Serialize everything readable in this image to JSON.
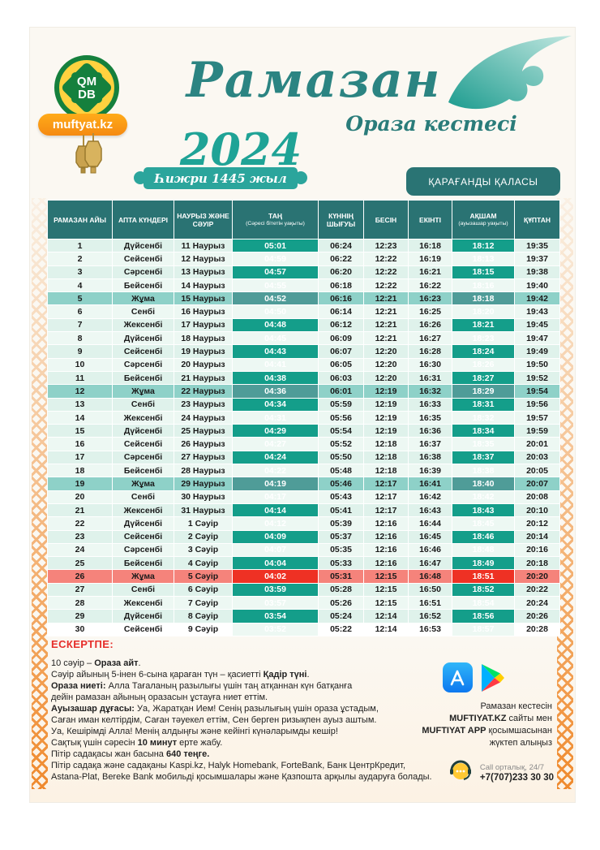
{
  "header": {
    "title": "Рамазан",
    "subtitle": "Ораза кестесі",
    "year": "2024",
    "hijri_badge": "Һижри 1445 жыл",
    "city_button": "ҚАРАҒАНДЫ ҚАЛАСЫ",
    "logo": {
      "line1": "QM",
      "line2": "DB",
      "badge": "muftyat.kz"
    }
  },
  "colors": {
    "header_teal": "#2a7373",
    "accent_teal": "#149e8a",
    "friday_light": "#8ed1c8",
    "friday_dark": "#4f9c98",
    "red": "#ee3124",
    "red_light": "#f5837b",
    "row_odd": "#dff2eb",
    "row_even": "#edf8f3",
    "orange_brand": "#f58a12"
  },
  "table": {
    "headers": [
      {
        "key": "ramadan-day",
        "main": "РАМАЗАН АЙЫ",
        "sub": ""
      },
      {
        "key": "weekday",
        "main": "АПТА КҮНДЕРІ",
        "sub": ""
      },
      {
        "key": "date",
        "main": "НАУРЫЗ ЖӘНЕ СӘУІР",
        "sub": ""
      },
      {
        "key": "tan",
        "main": "ТАҢ",
        "sub": "(Сәресі бітетін уақыты)"
      },
      {
        "key": "sunrise",
        "main": "КҮННІҢ ШЫҒУЫ",
        "sub": ""
      },
      {
        "key": "besin",
        "main": "БЕСІН",
        "sub": ""
      },
      {
        "key": "ekinti",
        "main": "ЕКІНТІ",
        "sub": ""
      },
      {
        "key": "aqsham",
        "main": "АҚШАМ",
        "sub": "(ауызашар уақыты)"
      },
      {
        "key": "quptan",
        "main": "ҚҰПТАН",
        "sub": ""
      }
    ],
    "rows": [
      {
        "type": "normal",
        "cells": [
          "1",
          "Дүйсенбі",
          "11 Наурыз",
          "05:01",
          "06:24",
          "12:23",
          "16:18",
          "18:12",
          "19:35"
        ]
      },
      {
        "type": "normal",
        "cells": [
          "2",
          "Сейсенбі",
          "12 Наурыз",
          "04:59",
          "06:22",
          "12:22",
          "16:19",
          "18:13",
          "19:37"
        ]
      },
      {
        "type": "normal",
        "cells": [
          "3",
          "Сәрсенбі",
          "13 Наурыз",
          "04:57",
          "06:20",
          "12:22",
          "16:21",
          "18:15",
          "19:38"
        ]
      },
      {
        "type": "normal",
        "cells": [
          "4",
          "Бейсенбі",
          "14 Наурыз",
          "04:55",
          "06:18",
          "12:22",
          "16:22",
          "18:16",
          "19:40"
        ]
      },
      {
        "type": "friday",
        "cells": [
          "5",
          "Жұма",
          "15 Наурыз",
          "04:52",
          "06:16",
          "12:21",
          "16:23",
          "18:18",
          "19:42"
        ]
      },
      {
        "type": "normal",
        "cells": [
          "6",
          "Сенбі",
          "16 Наурыз",
          "04:50",
          "06:14",
          "12:21",
          "16:25",
          "18:20",
          "19:43"
        ]
      },
      {
        "type": "normal",
        "cells": [
          "7",
          "Жексенбі",
          "17 Наурыз",
          "04:48",
          "06:12",
          "12:21",
          "16:26",
          "18:21",
          "19:45"
        ]
      },
      {
        "type": "normal",
        "cells": [
          "8",
          "Дүйсенбі",
          "18 Наурыз",
          "04:45",
          "06:09",
          "12:21",
          "16:27",
          "18:23",
          "19:47"
        ]
      },
      {
        "type": "normal",
        "cells": [
          "9",
          "Сейсенбі",
          "19 Наурыз",
          "04:43",
          "06:07",
          "12:20",
          "16:28",
          "18:24",
          "19:49"
        ]
      },
      {
        "type": "normal",
        "cells": [
          "10",
          "Сәрсенбі",
          "20 Наурыз",
          "04:41",
          "06:05",
          "12:20",
          "16:30",
          "18:26",
          "19:50"
        ]
      },
      {
        "type": "normal",
        "cells": [
          "11",
          "Бейсенбі",
          "21 Наурыз",
          "04:38",
          "06:03",
          "12:20",
          "16:31",
          "18:27",
          "19:52"
        ]
      },
      {
        "type": "friday",
        "cells": [
          "12",
          "Жұма",
          "22 Наурыз",
          "04:36",
          "06:01",
          "12:19",
          "16:32",
          "18:29",
          "19:54"
        ]
      },
      {
        "type": "normal",
        "cells": [
          "13",
          "Сенбі",
          "23 Наурыз",
          "04:34",
          "05:59",
          "12:19",
          "16:33",
          "18:31",
          "19:56"
        ]
      },
      {
        "type": "normal",
        "cells": [
          "14",
          "Жексенбі",
          "24 Наурыз",
          "04:31",
          "05:56",
          "12:19",
          "16:35",
          "18:32",
          "19:57"
        ]
      },
      {
        "type": "normal",
        "cells": [
          "15",
          "Дүйсенбі",
          "25 Наурыз",
          "04:29",
          "05:54",
          "12:19",
          "16:36",
          "18:34",
          "19:59"
        ]
      },
      {
        "type": "normal",
        "cells": [
          "16",
          "Сейсенбі",
          "26 Наурыз",
          "04:27",
          "05:52",
          "12:18",
          "16:37",
          "18:35",
          "20:01"
        ]
      },
      {
        "type": "normal",
        "cells": [
          "17",
          "Сәрсенбі",
          "27 Наурыз",
          "04:24",
          "05:50",
          "12:18",
          "16:38",
          "18:37",
          "20:03"
        ]
      },
      {
        "type": "normal",
        "cells": [
          "18",
          "Бейсенбі",
          "28 Наурыз",
          "04:22",
          "05:48",
          "12:18",
          "16:39",
          "18:38",
          "20:05"
        ]
      },
      {
        "type": "friday",
        "cells": [
          "19",
          "Жұма",
          "29 Наурыз",
          "04:19",
          "05:46",
          "12:17",
          "16:41",
          "18:40",
          "20:07"
        ]
      },
      {
        "type": "normal",
        "cells": [
          "20",
          "Сенбі",
          "30 Наурыз",
          "04:17",
          "05:43",
          "12:17",
          "16:42",
          "18:42",
          "20:08"
        ]
      },
      {
        "type": "normal",
        "cells": [
          "21",
          "Жексенбі",
          "31 Наурыз",
          "04:14",
          "05:41",
          "12:17",
          "16:43",
          "18:43",
          "20:10"
        ]
      },
      {
        "type": "normal",
        "cells": [
          "22",
          "Дүйсенбі",
          "1 Сәуір",
          "04:12",
          "05:39",
          "12:16",
          "16:44",
          "18:45",
          "20:12"
        ]
      },
      {
        "type": "normal",
        "cells": [
          "23",
          "Сейсенбі",
          "2 Сәуір",
          "04:09",
          "05:37",
          "12:16",
          "16:45",
          "18:46",
          "20:14"
        ]
      },
      {
        "type": "normal",
        "cells": [
          "24",
          "Сәрсенбі",
          "3 Сәуір",
          "04:07",
          "05:35",
          "12:16",
          "16:46",
          "18:48",
          "20:16"
        ]
      },
      {
        "type": "normal",
        "cells": [
          "25",
          "Бейсенбі",
          "4 Сәуір",
          "04:04",
          "05:33",
          "12:16",
          "16:47",
          "18:49",
          "20:18"
        ]
      },
      {
        "type": "red",
        "cells": [
          "26",
          "Жұма",
          "5 Сәуір",
          "04:02",
          "05:31",
          "12:15",
          "16:48",
          "18:51",
          "20:20"
        ]
      },
      {
        "type": "normal",
        "cells": [
          "27",
          "Сенбі",
          "6 Сәуір",
          "03:59",
          "05:28",
          "12:15",
          "16:50",
          "18:52",
          "20:22"
        ]
      },
      {
        "type": "normal",
        "cells": [
          "28",
          "Жексенбі",
          "7 Сәуір",
          "03:57",
          "05:26",
          "12:15",
          "16:51",
          "18:54",
          "20:24"
        ]
      },
      {
        "type": "normal",
        "cells": [
          "29",
          "Дүйсенбі",
          "8 Сәуір",
          "03:54",
          "05:24",
          "12:14",
          "16:52",
          "18:56",
          "20:26"
        ]
      },
      {
        "type": "normal",
        "cells": [
          "30",
          "Сейсенбі",
          "9 Сәуір",
          "03:52",
          "05:22",
          "12:14",
          "16:53",
          "18:57",
          "20:28"
        ]
      }
    ]
  },
  "notes": {
    "heading": "ЕСКЕРТПЕ:",
    "lines": [
      [
        {
          "t": "10 сәуір – "
        },
        {
          "t": "Ораза айт",
          "b": 1
        },
        {
          "t": "."
        }
      ],
      [
        {
          "t": "Сәуір айының 5-інен 6-сына қараған түн – қасиетті "
        },
        {
          "t": "Қадір түні",
          "b": 1
        },
        {
          "t": "."
        }
      ],
      [
        {
          "t": "Ораза ниеті:",
          "b": 1
        },
        {
          "t": " Алла Тағаланың разылығы үшін таң атқаннан күн батқанға"
        }
      ],
      [
        {
          "t": "дейін рамазан айының оразасын ұстауға ниет еттім."
        }
      ],
      [
        {
          "t": "Ауызашар дұғасы:",
          "b": 1
        },
        {
          "t": " Уа, Жаратқан Ием! Сенің разылығың үшін ораза ұстадым,"
        }
      ],
      [
        {
          "t": "Саған иман келтірдім, Саған тәуекел еттім, Сен берген ризықпен ауыз аштым."
        }
      ],
      [
        {
          "t": "Уа, Кешірімді Алла! Менің алдыңғы және кейінгі күнәларымды кешір!"
        }
      ],
      [
        {
          "t": "Сақтық үшін сәресін "
        },
        {
          "t": "10 минут",
          "b": 1
        },
        {
          "t": " ерте жабу."
        }
      ],
      [
        {
          "t": "Пітір садақасы жан басына "
        },
        {
          "t": "640 теңге.",
          "b": 1
        }
      ],
      [
        {
          "t": "Пітір садақа және садақаны Kaspi.kz, Halyk Homebank, ForteBank, Банк ЦентрКредит,"
        }
      ],
      [
        {
          "t": "Astana-Plat, Bereke Bank мобильді қосымшалары және Қазпошта арқылы аударуға болады."
        }
      ]
    ]
  },
  "footer": {
    "icons": {
      "app_store": "app-store-icon",
      "google_play": "google-play-icon",
      "call_center": "call-center-icon"
    },
    "download_lines": [
      [
        {
          "t": "Рамазан кестесін"
        }
      ],
      [
        {
          "t": "MUFTIYAT.KZ",
          "b": 1
        },
        {
          "t": " сайты мен"
        }
      ],
      [
        {
          "t": "MUFTIYAT APP",
          "b": 1
        },
        {
          "t": " қосымшасынан"
        }
      ],
      [
        {
          "t": "жүктеп алыңыз"
        }
      ]
    ],
    "call_label": "Call орталық, 24/7",
    "call_number": "+7(707)233 30 30"
  }
}
